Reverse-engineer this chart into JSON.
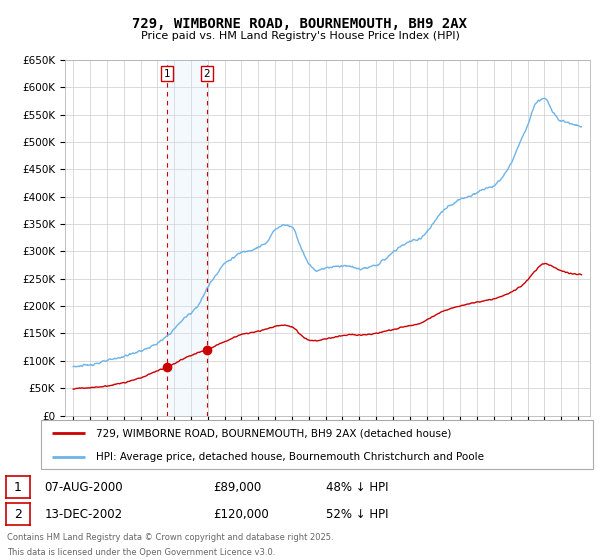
{
  "title": "729, WIMBORNE ROAD, BOURNEMOUTH, BH9 2AX",
  "subtitle": "Price paid vs. HM Land Registry's House Price Index (HPI)",
  "ylim": [
    0,
    650000
  ],
  "yticks": [
    0,
    50000,
    100000,
    150000,
    200000,
    250000,
    300000,
    350000,
    400000,
    450000,
    500000,
    550000,
    600000,
    650000
  ],
  "ytick_labels": [
    "£0",
    "£50K",
    "£100K",
    "£150K",
    "£200K",
    "£250K",
    "£300K",
    "£350K",
    "£400K",
    "£450K",
    "£500K",
    "£550K",
    "£600K",
    "£650K"
  ],
  "hpi_color": "#6EB4E8",
  "property_color": "#CC0000",
  "transaction1_date": 2000.59,
  "transaction1_price": 89000,
  "transaction2_date": 2002.95,
  "transaction2_price": 120000,
  "legend_property": "729, WIMBORNE ROAD, BOURNEMOUTH, BH9 2AX (detached house)",
  "legend_hpi": "HPI: Average price, detached house, Bournemouth Christchurch and Poole",
  "footer1": "Contains HM Land Registry data © Crown copyright and database right 2025.",
  "footer2": "This data is licensed under the Open Government Licence v3.0.",
  "table_row1": [
    "1",
    "07-AUG-2000",
    "£89,000",
    "48% ↓ HPI"
  ],
  "table_row2": [
    "2",
    "13-DEC-2002",
    "£120,000",
    "52% ↓ HPI"
  ],
  "background_color": "#ffffff",
  "grid_color": "#cccccc",
  "shade_color": "#D0E8F8",
  "hpi_anchors_t": [
    1995.0,
    1995.5,
    1996.0,
    1996.5,
    1997.0,
    1997.5,
    1998.0,
    1998.5,
    1999.0,
    1999.5,
    2000.0,
    2000.5,
    2001.0,
    2001.5,
    2002.0,
    2002.5,
    2003.0,
    2003.5,
    2004.0,
    2004.5,
    2005.0,
    2005.5,
    2006.0,
    2006.5,
    2007.0,
    2007.5,
    2008.0,
    2008.5,
    2009.0,
    2009.5,
    2010.0,
    2010.5,
    2011.0,
    2011.5,
    2012.0,
    2012.5,
    2013.0,
    2013.5,
    2014.0,
    2014.5,
    2015.0,
    2015.5,
    2016.0,
    2016.5,
    2017.0,
    2017.5,
    2018.0,
    2018.5,
    2019.0,
    2019.5,
    2020.0,
    2020.5,
    2021.0,
    2021.5,
    2022.0,
    2022.5,
    2023.0,
    2023.5,
    2024.0,
    2024.5,
    2025.0
  ],
  "hpi_anchors_p": [
    90000,
    90500,
    93000,
    96000,
    100000,
    104000,
    108000,
    113000,
    118000,
    124000,
    132000,
    143000,
    158000,
    175000,
    188000,
    205000,
    235000,
    258000,
    278000,
    288000,
    298000,
    302000,
    308000,
    316000,
    340000,
    348000,
    345000,
    310000,
    278000,
    265000,
    270000,
    272000,
    274000,
    272000,
    268000,
    270000,
    275000,
    285000,
    298000,
    310000,
    318000,
    322000,
    335000,
    355000,
    375000,
    385000,
    395000,
    400000,
    408000,
    415000,
    420000,
    435000,
    460000,
    495000,
    530000,
    570000,
    580000,
    555000,
    540000,
    535000,
    530000
  ],
  "prop_anchors_t": [
    1995.0,
    1995.5,
    1996.0,
    1996.5,
    1997.0,
    1997.5,
    1998.0,
    1998.5,
    1999.0,
    1999.5,
    2000.0,
    2000.59,
    2001.0,
    2001.5,
    2002.0,
    2002.5,
    2002.95,
    2003.5,
    2004.0,
    2004.5,
    2005.0,
    2005.5,
    2006.0,
    2006.5,
    2007.0,
    2007.5,
    2008.0,
    2008.5,
    2009.0,
    2009.5,
    2010.0,
    2010.5,
    2011.0,
    2011.5,
    2012.0,
    2012.5,
    2013.0,
    2013.5,
    2014.0,
    2014.5,
    2015.0,
    2015.5,
    2016.0,
    2016.5,
    2017.0,
    2017.5,
    2018.0,
    2018.5,
    2019.0,
    2019.5,
    2020.0,
    2020.5,
    2021.0,
    2021.5,
    2022.0,
    2022.5,
    2023.0,
    2023.5,
    2024.0,
    2024.5,
    2025.0
  ],
  "prop_anchors_p": [
    49000,
    50000,
    51000,
    52000,
    54000,
    57000,
    60000,
    64000,
    69000,
    75000,
    82000,
    89000,
    95000,
    103000,
    110000,
    116000,
    120000,
    128000,
    135000,
    142000,
    148000,
    151000,
    154000,
    158000,
    163000,
    165000,
    162000,
    148000,
    138000,
    137000,
    140000,
    143000,
    146000,
    148000,
    147000,
    148000,
    150000,
    154000,
    157000,
    161000,
    164000,
    167000,
    175000,
    183000,
    191000,
    196000,
    200000,
    204000,
    207000,
    210000,
    213000,
    218000,
    225000,
    234000,
    248000,
    266000,
    278000,
    272000,
    265000,
    260000,
    258000
  ]
}
